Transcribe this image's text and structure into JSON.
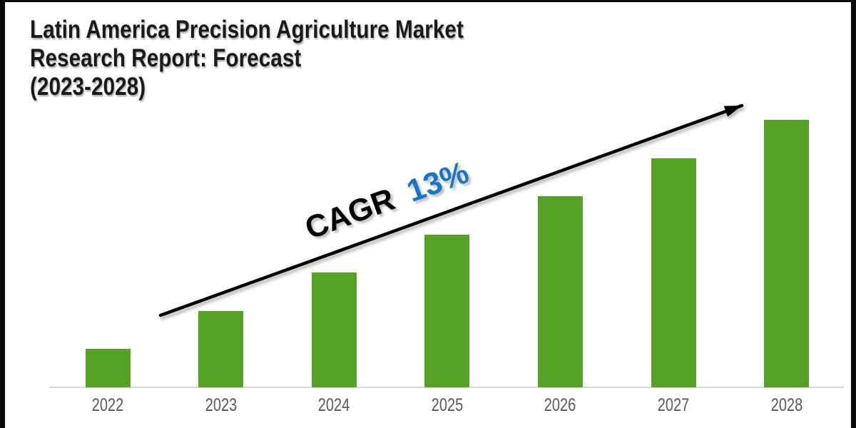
{
  "title": {
    "lines": [
      "Latin America Precision Agriculture Market",
      "Research Report: Forecast",
      "(2023-2028)"
    ],
    "color": "#1a1a1a"
  },
  "annotation": {
    "label": "CAGR",
    "value": "13%",
    "label_color": "#000000",
    "value_color": "#1b75c4"
  },
  "chart_data": {
    "type": "bar",
    "title": "Latin America Precision Agriculture Market Research Report: Forecast (2023-2028)",
    "categories": [
      "2022",
      "2023",
      "2024",
      "2025",
      "2026",
      "2027",
      "2028"
    ],
    "values": [
      1,
      2,
      3,
      4,
      5,
      6,
      7
    ],
    "values_note": "relative bar heights; no y-axis or value labels shown, bars grow linearly by one unit per year",
    "xlabel": "",
    "ylabel": "",
    "ylim": [
      0,
      7.5
    ],
    "grid": false,
    "legend": null,
    "annotation": "CAGR 13%",
    "trend_arrow": "straight black arrow rising left-to-right above the bars",
    "bar_color": "#55a227",
    "axis_line_color": "#d8d8d8",
    "tick_label_color": "#595959"
  },
  "frame": {
    "border_color": "#0a0a0a",
    "background": "#ffffff"
  }
}
